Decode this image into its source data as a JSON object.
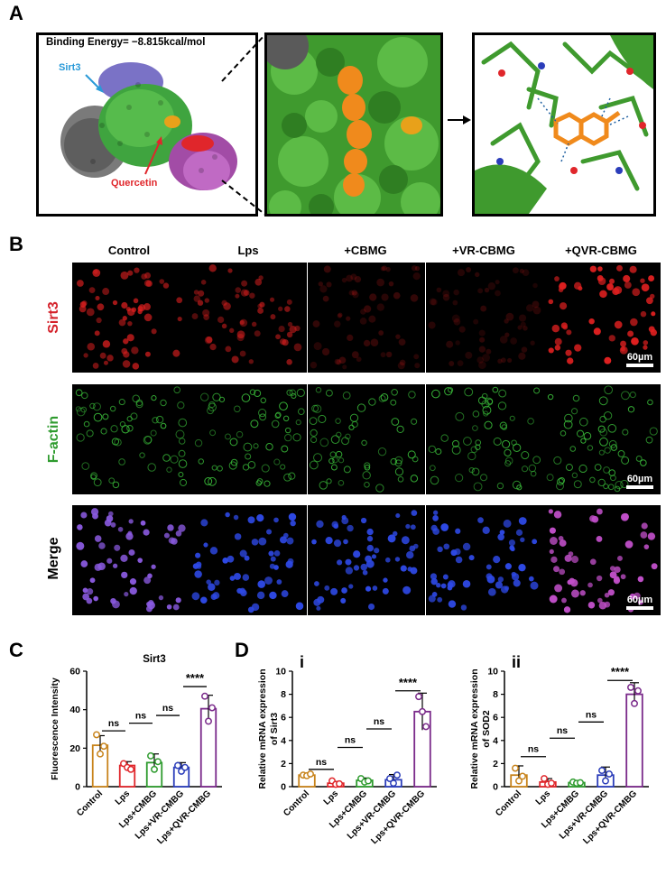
{
  "panels": {
    "a": "A",
    "b": "B",
    "c": "C",
    "d": "D"
  },
  "panel_a": {
    "binding_energy": "Binding Energy= −8.815kcal/mol",
    "sirt3_label": "Sirt3",
    "quercetin_label": "Quercetin"
  },
  "panel_b": {
    "columns": [
      "Control",
      "Lps",
      "+CBMG",
      "+VR-CBMG",
      "+QVR-CBMG"
    ],
    "rows": [
      "Sirt3",
      "F-actin",
      "Merge"
    ],
    "scale_bar": "60µm",
    "row_colors": [
      "#d4212a",
      "#2e9b2e",
      "#000000"
    ]
  },
  "chart_data": [
    {
      "type": "bar",
      "title": "Sirt3",
      "ylabel": "Fluorescence Intensity",
      "ylim": [
        0,
        60
      ],
      "yticks": [
        "0",
        "20",
        "40",
        "60"
      ],
      "categories": [
        "Control",
        "Lps",
        "Lps+CMBG",
        "Lps+VR-CMBG",
        "Lps+QVR-CMBG"
      ],
      "values": [
        21.5,
        11,
        12.5,
        10,
        40.5
      ],
      "errors": [
        5,
        2,
        4.5,
        2.5,
        7
      ],
      "points": [
        [
          27,
          17,
          21
        ],
        [
          12,
          10,
          9
        ],
        [
          16,
          9,
          13
        ],
        [
          11,
          8,
          10
        ],
        [
          47,
          34,
          41
        ]
      ],
      "colors": [
        "#c8841c",
        "#e0262b",
        "#2e9b2e",
        "#2b3dba",
        "#7a2a8a"
      ],
      "significance": [
        {
          "from": 0,
          "to": 1,
          "label": "ns"
        },
        {
          "from": 1,
          "to": 2,
          "label": "ns"
        },
        {
          "from": 2,
          "to": 3,
          "label": "ns"
        },
        {
          "from": 3,
          "to": 4,
          "label": "****"
        }
      ]
    },
    {
      "type": "bar",
      "subpanel": "i",
      "ylabel": "Relative mRNA expression\nof Sirt3",
      "ylim": [
        0,
        10
      ],
      "yticks": [
        "0",
        "2",
        "4",
        "6",
        "8",
        "10"
      ],
      "categories": [
        "Control",
        "Lps",
        "Lps+CMBG",
        "Lps+VR-CMBG",
        "Lps+QVR-CMBG"
      ],
      "values": [
        1.0,
        0.3,
        0.55,
        0.6,
        6.5
      ],
      "errors": [
        0.15,
        0.15,
        0.2,
        0.45,
        1.6
      ],
      "points": [
        [
          1.0,
          0.95,
          1.1
        ],
        [
          0.5,
          0.2,
          0.25
        ],
        [
          0.7,
          0.4,
          0.5
        ],
        [
          0.7,
          0.3,
          1.0
        ],
        [
          7.8,
          6.5,
          5.2
        ]
      ],
      "colors": [
        "#c8841c",
        "#e0262b",
        "#2e9b2e",
        "#2b3dba",
        "#7a2a8a"
      ],
      "significance": [
        {
          "from": 0,
          "to": 1,
          "label": "ns"
        },
        {
          "from": 1,
          "to": 2,
          "label": "ns"
        },
        {
          "from": 2,
          "to": 3,
          "label": "ns"
        },
        {
          "from": 3,
          "to": 4,
          "label": "****"
        }
      ]
    },
    {
      "type": "bar",
      "subpanel": "ii",
      "ylabel": "Relative mRNA expression\nof SOD2",
      "ylim": [
        0,
        10
      ],
      "yticks": [
        "0",
        "2",
        "4",
        "6",
        "8",
        "10"
      ],
      "categories": [
        "Control",
        "Lps",
        "Lps+CMBG",
        "Lps+VR-CMBG",
        "Lps+QVR-CMBG"
      ],
      "values": [
        1.0,
        0.4,
        0.35,
        1.0,
        8.0
      ],
      "errors": [
        0.8,
        0.3,
        0.1,
        0.7,
        1.0
      ],
      "points": [
        [
          1.6,
          0.5,
          0.9
        ],
        [
          0.7,
          0.2,
          0.3
        ],
        [
          0.4,
          0.3,
          0.35
        ],
        [
          1.4,
          0.5,
          1.1
        ],
        [
          8.6,
          7.2,
          8.3
        ]
      ],
      "colors": [
        "#c8841c",
        "#e0262b",
        "#2e9b2e",
        "#2b3dba",
        "#7a2a8a"
      ],
      "significance": [
        {
          "from": 0,
          "to": 1,
          "label": "ns"
        },
        {
          "from": 1,
          "to": 2,
          "label": "ns"
        },
        {
          "from": 2,
          "to": 3,
          "label": "ns"
        },
        {
          "from": 3,
          "to": 4,
          "label": "****"
        }
      ]
    }
  ]
}
